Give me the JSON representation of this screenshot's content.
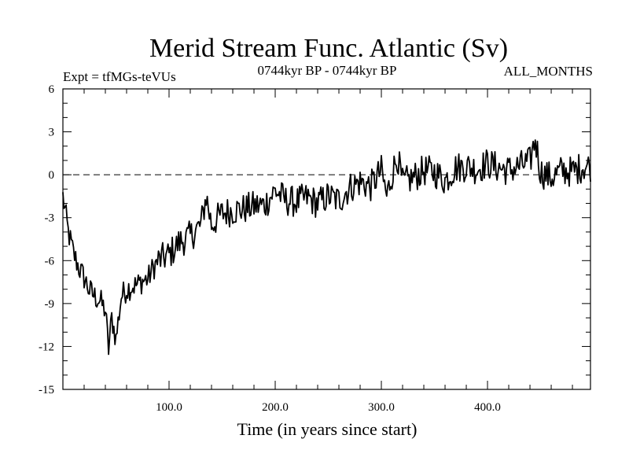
{
  "chart_data": {
    "type": "line",
    "title": "Merid Stream Func. Atlantic (Sv)",
    "subtitle_left": "Expt = tfMGs-teVUs",
    "subtitle_center": "0744kyr BP - 0744kyr BP",
    "subtitle_right": "ALL_MONTHS",
    "xlabel": "Time (in years since start)",
    "ylabel": "",
    "xlim": [
      0,
      497
    ],
    "ylim": [
      -15,
      6
    ],
    "xticks": [
      100,
      200,
      300,
      400
    ],
    "xtick_labels": [
      "100.0",
      "200.0",
      "300.0",
      "400.0"
    ],
    "yticks": [
      6,
      3,
      0,
      -3,
      -6,
      -9,
      -12,
      -15
    ],
    "ytick_labels": [
      "6",
      "3",
      "0",
      "-3",
      "-6",
      "-9",
      "-12",
      "-15"
    ],
    "reference_line": {
      "y": 0,
      "style": "dashed"
    },
    "series": [
      {
        "name": "Merid Stream Func. Atlantic",
        "color": "#000000",
        "x": [
          0,
          5,
          10,
          15,
          20,
          25,
          30,
          35,
          40,
          43,
          46,
          50,
          55,
          60,
          65,
          70,
          75,
          80,
          85,
          90,
          95,
          100,
          110,
          120,
          130,
          135,
          140,
          150,
          160,
          170,
          180,
          190,
          200,
          210,
          220,
          230,
          240,
          250,
          260,
          270,
          280,
          290,
          300,
          305,
          310,
          315,
          320,
          330,
          340,
          350,
          360,
          370,
          380,
          390,
          400,
          410,
          420,
          430,
          440,
          445,
          450,
          460,
          470,
          480,
          490,
          497
        ],
        "y": [
          -1.5,
          -4,
          -5.5,
          -6.5,
          -7.2,
          -8.1,
          -8.5,
          -8.8,
          -9.5,
          -12.2,
          -10,
          -11.5,
          -8.5,
          -8,
          -7.8,
          -7.7,
          -7.4,
          -7.3,
          -6.5,
          -6,
          -5.8,
          -5.6,
          -4.7,
          -4.3,
          -3.5,
          -1.5,
          -3.5,
          -2.7,
          -2.5,
          -2.4,
          -2.2,
          -2.1,
          -1.1,
          -1.8,
          -1.9,
          -1.6,
          -2,
          -1.5,
          -1.8,
          -0.9,
          -0.5,
          -0.8,
          0.3,
          -1.5,
          0,
          1.3,
          -0.6,
          -0.2,
          0.3,
          0.2,
          -0.4,
          0.5,
          0.6,
          0.4,
          0.8,
          0.5,
          0.3,
          0.6,
          0.9,
          2.5,
          0.2,
          -0.2,
          0.3,
          0.2,
          0.6,
          0.6
        ]
      }
    ]
  }
}
